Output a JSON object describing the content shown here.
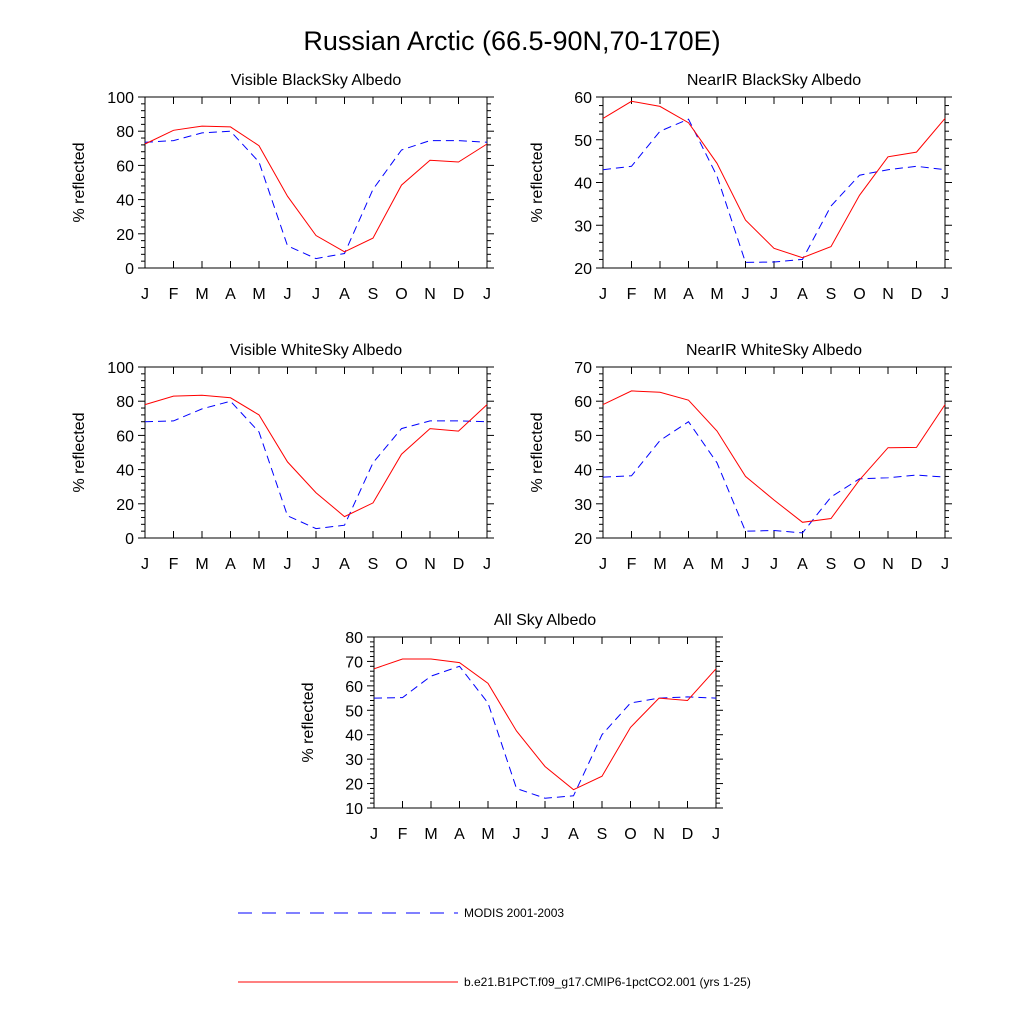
{
  "figure": {
    "title": "Russian Arctic (66.5-90N,70-170E)"
  },
  "legend": [
    {
      "label": "MODIS 2001-2003",
      "color": "#0000ff",
      "dash": "dashed"
    },
    {
      "label": "b.e21.B1PCT.f09_g17.CMIP6-1pctCO2.001 (yrs 1-25)",
      "color": "#ff0000",
      "dash": "solid"
    }
  ],
  "chart_data": [
    {
      "type": "line",
      "title": "Visible BlackSky Albedo",
      "xlabel": "",
      "ylabel": "% reflected",
      "categories": [
        "J",
        "F",
        "M",
        "A",
        "M",
        "J",
        "J",
        "A",
        "S",
        "O",
        "N",
        "D",
        "J"
      ],
      "ylim": [
        0,
        100
      ],
      "yticks": [
        0,
        20,
        40,
        60,
        80,
        100
      ],
      "series": [
        {
          "name": "MODIS 2001-2003",
          "color": "#0000ff",
          "dash": "dashed",
          "values": [
            73.5,
            74.5,
            79,
            80,
            62,
            13,
            5.5,
            8.5,
            46,
            69,
            74.5,
            74.5,
            73.5
          ]
        },
        {
          "name": "b.e21.B1PCT.f09_g17.CMIP6-1pctCO2.001 (yrs 1-25)",
          "color": "#ff0000",
          "dash": "solid",
          "values": [
            72.5,
            80.5,
            83,
            82.5,
            71.5,
            42,
            19,
            9.5,
            17.5,
            48.5,
            63,
            62,
            72.5
          ]
        }
      ]
    },
    {
      "type": "line",
      "title": "NearIR BlackSky Albedo",
      "xlabel": "",
      "ylabel": "% reflected",
      "categories": [
        "J",
        "F",
        "M",
        "A",
        "M",
        "J",
        "J",
        "A",
        "S",
        "O",
        "N",
        "D",
        "J"
      ],
      "ylim": [
        20,
        60
      ],
      "yticks": [
        20,
        30,
        40,
        50,
        60
      ],
      "series": [
        {
          "name": "MODIS 2001-2003",
          "color": "#0000ff",
          "dash": "dashed",
          "values": [
            43,
            43.8,
            52,
            54.8,
            41.5,
            21.3,
            21.4,
            22,
            34.5,
            41.7,
            43,
            43.8,
            43
          ]
        },
        {
          "name": "b.e21.B1PCT.f09_g17.CMIP6-1pctCO2.001 (yrs 1-25)",
          "color": "#ff0000",
          "dash": "solid",
          "values": [
            55,
            59,
            57.8,
            54,
            44.5,
            31.2,
            24.6,
            22.4,
            25,
            37,
            46,
            47.1,
            55
          ]
        }
      ]
    },
    {
      "type": "line",
      "title": "Visible WhiteSky Albedo",
      "xlabel": "",
      "ylabel": "% reflected",
      "categories": [
        "J",
        "F",
        "M",
        "A",
        "M",
        "J",
        "J",
        "A",
        "S",
        "O",
        "N",
        "D",
        "J"
      ],
      "ylim": [
        0,
        100
      ],
      "yticks": [
        0,
        20,
        40,
        60,
        80,
        100
      ],
      "series": [
        {
          "name": "MODIS 2001-2003",
          "color": "#0000ff",
          "dash": "dashed",
          "values": [
            68,
            68.5,
            75.5,
            80,
            62,
            13,
            5.5,
            7.5,
            44,
            64,
            68.5,
            68.5,
            68
          ]
        },
        {
          "name": "b.e21.B1PCT.f09_g17.CMIP6-1pctCO2.001 (yrs 1-25)",
          "color": "#ff0000",
          "dash": "solid",
          "values": [
            78,
            83,
            83.5,
            82,
            72,
            44.5,
            26.5,
            12.5,
            20.5,
            49,
            64,
            62.5,
            78
          ]
        }
      ]
    },
    {
      "type": "line",
      "title": "NearIR WhiteSky Albedo",
      "xlabel": "",
      "ylabel": "% reflected",
      "categories": [
        "J",
        "F",
        "M",
        "A",
        "M",
        "J",
        "J",
        "A",
        "S",
        "O",
        "N",
        "D",
        "J"
      ],
      "ylim": [
        20,
        70
      ],
      "yticks": [
        20,
        30,
        40,
        50,
        60,
        70
      ],
      "series": [
        {
          "name": "MODIS 2001-2003",
          "color": "#0000ff",
          "dash": "dashed",
          "values": [
            37.8,
            38.2,
            48.5,
            54,
            42,
            22,
            22.2,
            21.5,
            32,
            37.3,
            37.6,
            38.4,
            37.8
          ]
        },
        {
          "name": "b.e21.B1PCT.f09_g17.CMIP6-1pctCO2.001 (yrs 1-25)",
          "color": "#ff0000",
          "dash": "solid",
          "values": [
            59,
            63,
            62.6,
            60.3,
            51.3,
            38,
            31.1,
            24.6,
            25.7,
            37,
            46.4,
            46.5,
            59
          ]
        }
      ]
    },
    {
      "type": "line",
      "title": "All Sky Albedo",
      "xlabel": "",
      "ylabel": "% reflected",
      "categories": [
        "J",
        "F",
        "M",
        "A",
        "M",
        "J",
        "J",
        "A",
        "S",
        "O",
        "N",
        "D",
        "J"
      ],
      "ylim": [
        10,
        80
      ],
      "yticks": [
        10,
        20,
        30,
        40,
        50,
        60,
        70,
        80
      ],
      "series": [
        {
          "name": "MODIS 2001-2003",
          "color": "#0000ff",
          "dash": "dashed",
          "values": [
            55,
            55.2,
            64,
            68,
            53,
            18,
            14,
            15,
            40,
            53,
            55,
            55.5,
            55
          ]
        },
        {
          "name": "b.e21.B1PCT.f09_g17.CMIP6-1pctCO2.001 (yrs 1-25)",
          "color": "#ff0000",
          "dash": "solid",
          "values": [
            67,
            71,
            71,
            69.5,
            61,
            41.5,
            27,
            17.5,
            23,
            43,
            55,
            54,
            67
          ]
        }
      ]
    }
  ]
}
